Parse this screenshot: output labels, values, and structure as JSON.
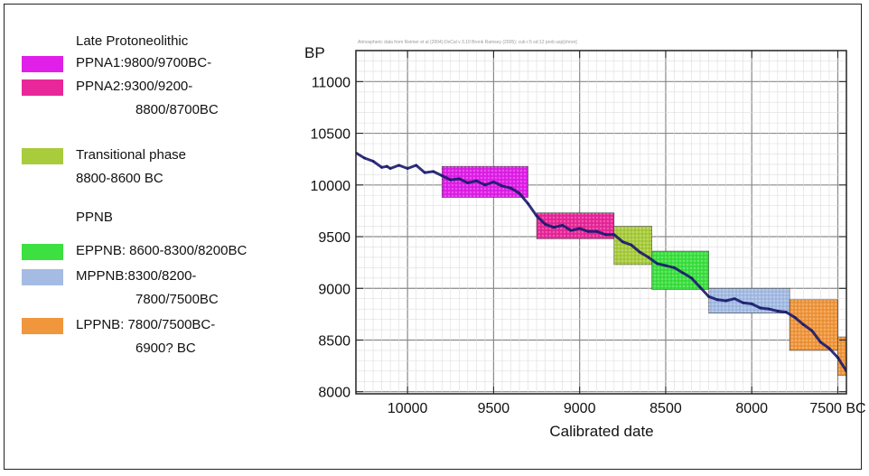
{
  "legend": {
    "groups": [
      {
        "heading": "Late Protoneolithic",
        "items": [
          {
            "lines": [
              "PPNA1:9800/9700BC-"
            ],
            "color": "#e020e8"
          },
          {
            "lines": [
              "PPNA2:9300/9200-",
              "8800/8700BC"
            ],
            "color": "#e8289a"
          }
        ]
      },
      {
        "heading": "",
        "items": [
          {
            "lines": [
              "Transitional phase",
              "8800-8600 BC"
            ],
            "color": "#a8cc3c"
          }
        ]
      },
      {
        "heading": "PPNB",
        "items": [
          {
            "lines": [
              "EPPNB: 8600-8300/8200BC"
            ],
            "color": "#3ce040"
          },
          {
            "lines": [
              "MPPNB:8300/8200-",
              "7800/7500BC"
            ],
            "color": "#a4bce4"
          },
          {
            "lines": [
              "LPPNB: 7800/7500BC-",
              "6900? BC"
            ],
            "color": "#f0963c"
          }
        ]
      }
    ]
  },
  "chart_data": {
    "type": "line",
    "title": "",
    "subtitle": "Atmospheric data from Reimer et al (2004);OxCal v 3.10 Bronk Ramsey (2005); cub r:5 sd:12 prob usp[chron]",
    "xlabel": "Calibrated date",
    "ylabel": "BP",
    "xlim": [
      10300,
      7450
    ],
    "ylim": [
      7980,
      11300
    ],
    "x_ticks": [
      10000,
      9500,
      9000,
      8500,
      8000,
      7500
    ],
    "x_tick_labels": [
      "10000",
      "9500",
      "9000",
      "8500",
      "8000",
      "7500 BC"
    ],
    "y_ticks": [
      8000,
      8500,
      9000,
      9500,
      10000,
      10500,
      11000
    ],
    "y_tick_labels": [
      "8000",
      "8500",
      "9000",
      "9500",
      "10000",
      "10500",
      "11000"
    ],
    "grid": true,
    "series": [
      {
        "color": "#1a1a6e",
        "x": [
          10300,
          10250,
          10200,
          10150,
          10120,
          10100,
          10050,
          10000,
          9950,
          9900,
          9850,
          9800,
          9750,
          9700,
          9650,
          9600,
          9550,
          9500,
          9450,
          9400,
          9350,
          9300,
          9250,
          9200,
          9150,
          9100,
          9050,
          9000,
          8950,
          8900,
          8850,
          8800,
          8750,
          8700,
          8650,
          8600,
          8550,
          8500,
          8450,
          8400,
          8350,
          8300,
          8250,
          8200,
          8150,
          8100,
          8050,
          8000,
          7950,
          7900,
          7850,
          7800,
          7750,
          7700,
          7650,
          7600,
          7550,
          7500,
          7450
        ],
        "y": [
          10310,
          10260,
          10230,
          10170,
          10180,
          10160,
          10190,
          10160,
          10190,
          10120,
          10130,
          10090,
          10050,
          10060,
          10020,
          10040,
          10000,
          10030,
          9990,
          9970,
          9920,
          9820,
          9700,
          9620,
          9590,
          9610,
          9560,
          9580,
          9550,
          9550,
          9520,
          9520,
          9450,
          9420,
          9350,
          9300,
          9240,
          9220,
          9200,
          9150,
          9100,
          9010,
          8920,
          8890,
          8880,
          8900,
          8860,
          8850,
          8810,
          8800,
          8780,
          8770,
          8720,
          8650,
          8590,
          8480,
          8420,
          8330,
          8200
        ]
      }
    ],
    "boxes": [
      {
        "label": "PPNA1",
        "x_start": 9800,
        "x_end": 9300,
        "y_low": 9880,
        "y_high": 10180,
        "color": "#e020e8"
      },
      {
        "label": "PPNA2",
        "x_start": 9250,
        "x_end": 8800,
        "y_low": 9480,
        "y_high": 9730,
        "color": "#e8289a"
      },
      {
        "label": "Transitional phase",
        "x_start": 8800,
        "x_end": 8580,
        "y_low": 9230,
        "y_high": 9600,
        "color": "#a8cc3c"
      },
      {
        "label": "EPPNB",
        "x_start": 8580,
        "x_end": 8250,
        "y_low": 8990,
        "y_high": 9360,
        "color": "#3ce040"
      },
      {
        "label": "MPPNB",
        "x_start": 8250,
        "x_end": 7780,
        "y_low": 8760,
        "y_high": 9000,
        "color": "#a4bce4"
      },
      {
        "label": "LPPNB-1",
        "x_start": 7780,
        "x_end": 7500,
        "y_low": 8400,
        "y_high": 8890,
        "color": "#f0963c"
      },
      {
        "label": "LPPNB-2",
        "x_start": 7500,
        "x_end": 7230,
        "y_low": 8160,
        "y_high": 8530,
        "color": "#f0963c"
      }
    ]
  }
}
